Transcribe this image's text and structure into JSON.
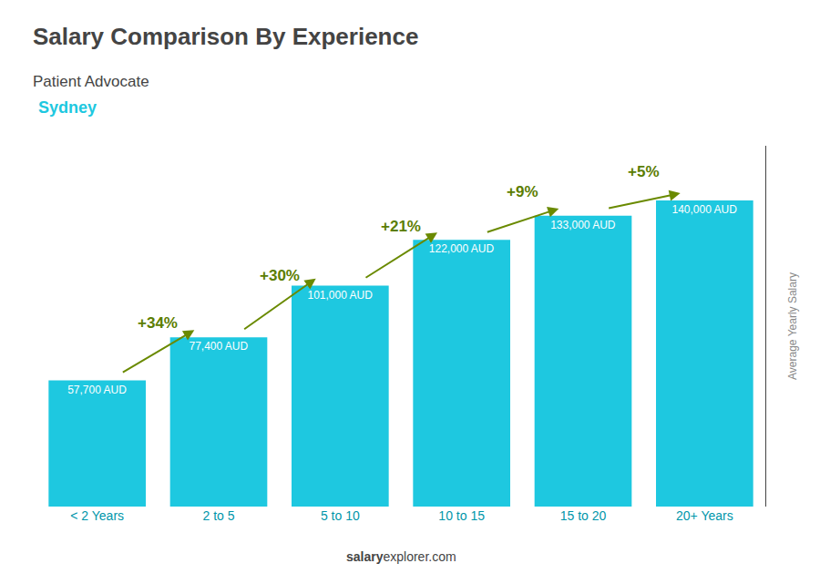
{
  "chart_data": {
    "type": "bar",
    "title": "Salary Comparison By Experience",
    "subtitle": "Patient Advocate",
    "ylabel": "Average Yearly Salary",
    "categories": [
      "< 2 Years",
      "2 to 5",
      "5 to 10",
      "10 to 15",
      "15 to 20",
      "20+ Years"
    ],
    "values": [
      57700,
      77400,
      101000,
      122000,
      133000,
      140000
    ],
    "value_labels": [
      "57,700 AUD",
      "77,400 AUD",
      "101,000 AUD",
      "122,000 AUD",
      "133,000 AUD",
      "140,000 AUD"
    ],
    "data_labels": true,
    "color": "#1ec8e0",
    "ylim": [
      0,
      165000
    ],
    "grid": false,
    "tick_labels": "x",
    "annotations": [
      {
        "text": "Sydney"
      },
      {
        "text": "salary"
      },
      {
        "text": "explorer.com"
      },
      {
        "text": "+34%",
        "from": "< 2 Years",
        "to": "2 to 5"
      },
      {
        "text": "+30%",
        "from": "2 to 5",
        "to": "5 to 10"
      },
      {
        "text": "+21%",
        "from": "5 to 10",
        "to": "10 to 15"
      },
      {
        "text": "+9%",
        "from": "10 to 15",
        "to": "15 to 20"
      },
      {
        "text": "+5%",
        "from": "15 to 20",
        "to": "20+ Years"
      }
    ]
  }
}
